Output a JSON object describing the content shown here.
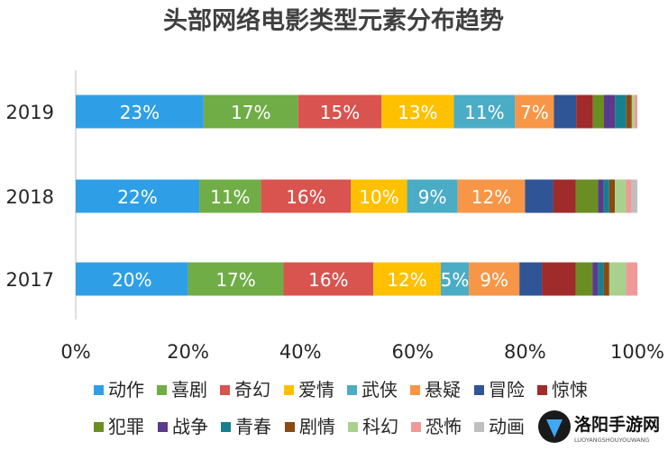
{
  "chart_data": {
    "type": "bar",
    "orientation": "horizontal",
    "stacked": "percent",
    "title": "头部网络电影类型元素分布趋势",
    "categories": [
      "2019",
      "2018",
      "2017"
    ],
    "series": [
      {
        "name": "动作",
        "color": "#2e9fe6",
        "values": [
          23,
          22,
          20
        ],
        "labels": [
          "23%",
          "22%",
          "20%"
        ]
      },
      {
        "name": "喜剧",
        "color": "#70ad47",
        "values": [
          17,
          11,
          17
        ],
        "labels": [
          "17%",
          "11%",
          "17%"
        ]
      },
      {
        "name": "奇幻",
        "color": "#d9534f",
        "values": [
          15,
          16,
          16
        ],
        "labels": [
          "15%",
          "16%",
          "16%"
        ]
      },
      {
        "name": "爱情",
        "color": "#ffc000",
        "values": [
          13,
          10,
          12
        ],
        "labels": [
          "13%",
          "10%",
          "12%"
        ]
      },
      {
        "name": "武侠",
        "color": "#4bacc6",
        "values": [
          11,
          9,
          5
        ],
        "labels": [
          "11%",
          "9%",
          "5%"
        ]
      },
      {
        "name": "悬疑",
        "color": "#f79646",
        "values": [
          7,
          12,
          9
        ],
        "labels": [
          "7%",
          "12%",
          "9%"
        ]
      },
      {
        "name": "冒险",
        "color": "#2f5597",
        "values": [
          4,
          5,
          4
        ],
        "labels": [
          "",
          "",
          ""
        ]
      },
      {
        "name": "惊悚",
        "color": "#a02b2b",
        "values": [
          3,
          4,
          6
        ],
        "labels": [
          "",
          "",
          ""
        ]
      },
      {
        "name": "犯罪",
        "color": "#6a8e23",
        "values": [
          2,
          4,
          3
        ],
        "labels": [
          "",
          "",
          ""
        ]
      },
      {
        "name": "战争",
        "color": "#5b3a8c",
        "values": [
          2,
          1,
          1
        ],
        "labels": [
          "",
          "",
          ""
        ]
      },
      {
        "name": "青春",
        "color": "#17808f",
        "values": [
          2,
          1,
          1
        ],
        "labels": [
          "",
          "",
          ""
        ]
      },
      {
        "name": "剧情",
        "color": "#8b4a0f",
        "values": [
          1,
          1,
          1
        ],
        "labels": [
          "",
          "",
          ""
        ]
      },
      {
        "name": "科幻",
        "color": "#a9d18e",
        "values": [
          0.5,
          2,
          3
        ],
        "labels": [
          "",
          "",
          ""
        ]
      },
      {
        "name": "恐怖",
        "color": "#f19999",
        "values": [
          0.5,
          1,
          2
        ],
        "labels": [
          "",
          "",
          ""
        ]
      },
      {
        "name": "动画",
        "color": "#bfbfbf",
        "values": [
          0,
          1,
          0
        ],
        "labels": [
          "",
          "",
          ""
        ]
      }
    ],
    "xlim": [
      0,
      100
    ],
    "x_ticks": [
      "0%",
      "20%",
      "40%",
      "60%",
      "80%",
      "100%"
    ],
    "grid": false,
    "legend_position": "bottom"
  }
}
